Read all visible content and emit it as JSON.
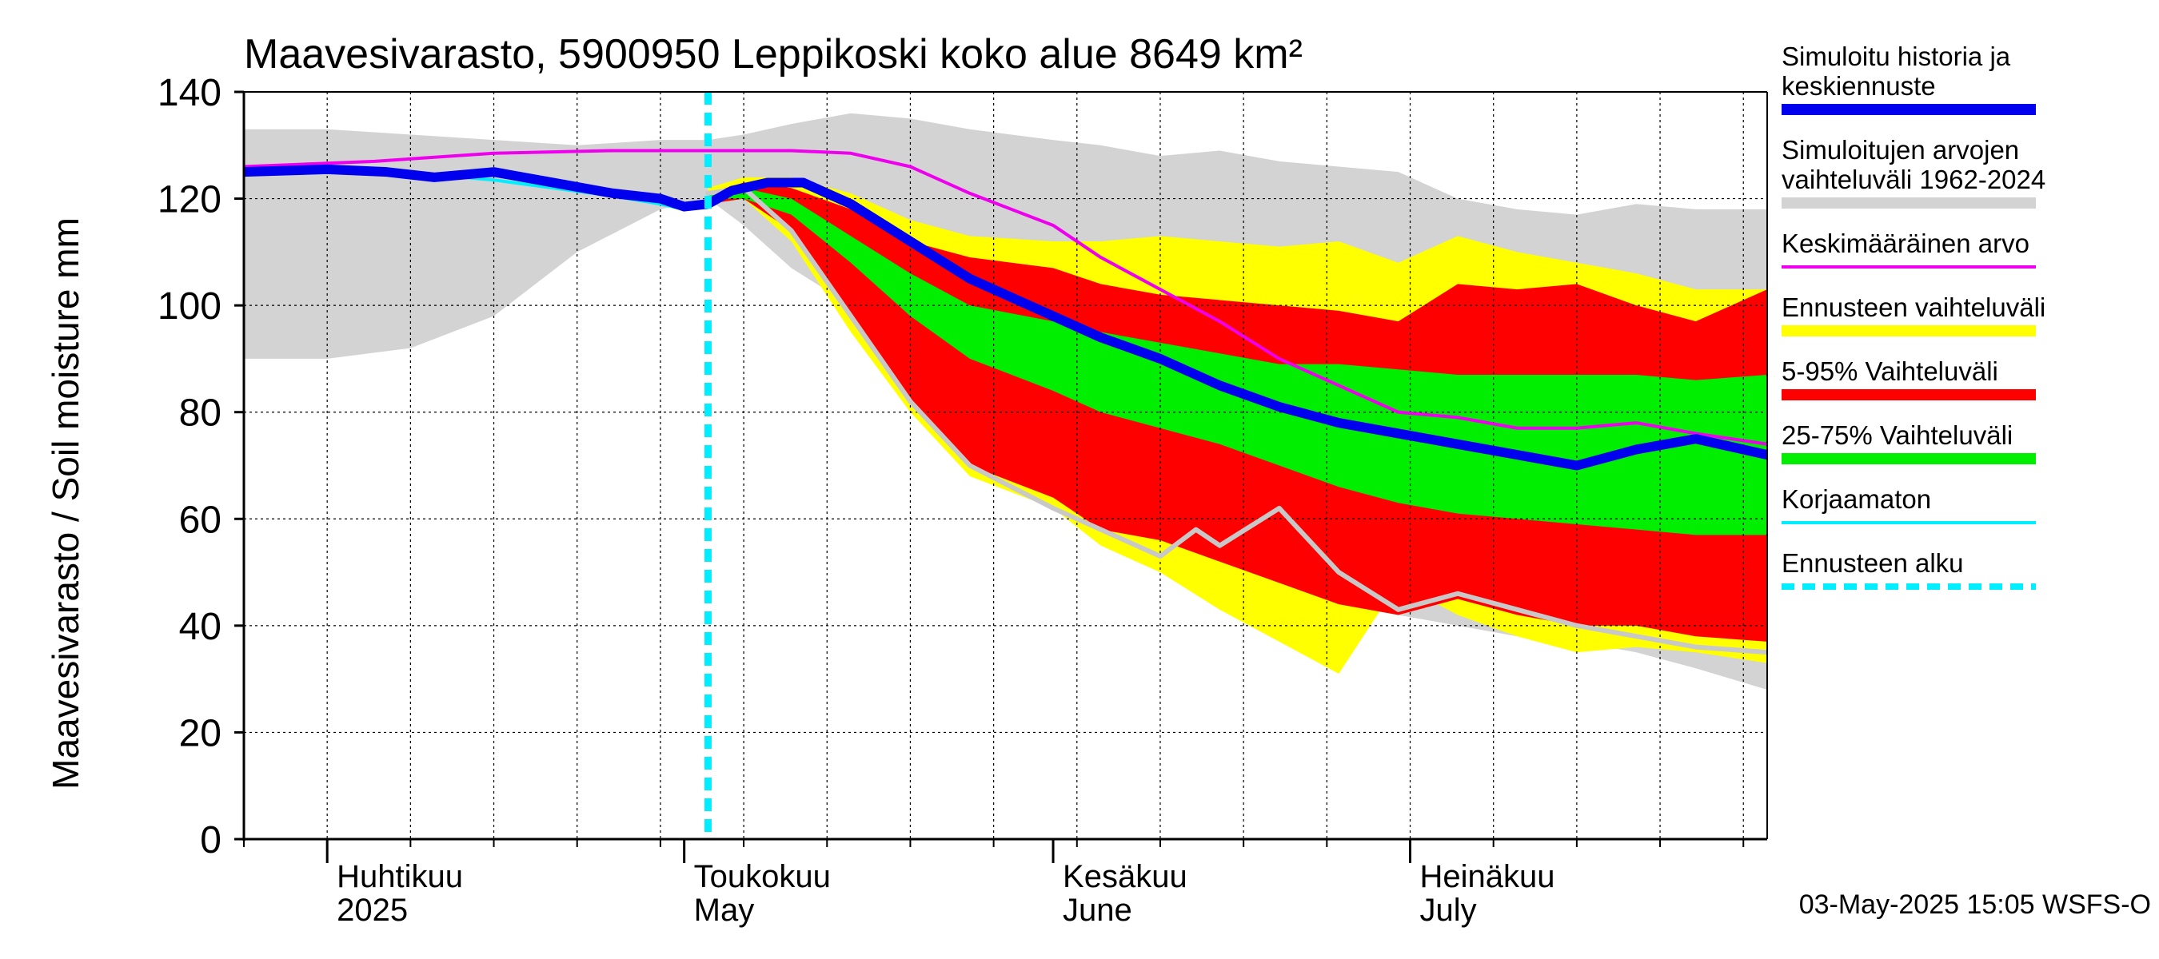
{
  "chart_data": {
    "type": "area",
    "title": "Maavesivarasto, 5900950 Leppikoski koko alue 8649 km²",
    "ylabel": "Maavesivarasto / Soil moisture   mm",
    "ylim": [
      0,
      140
    ],
    "yticks": [
      0,
      20,
      40,
      60,
      80,
      100,
      120,
      140
    ],
    "xlim": [
      "2025-03-25",
      "2025-07-31"
    ],
    "x_axis_type": "date",
    "grid": true,
    "legend_placement": "right",
    "forecast_start": "2025-05-03",
    "month_labels": [
      {
        "fi": "Huhtikuu",
        "en": "2025",
        "date": "2025-04-01"
      },
      {
        "fi": "Toukokuu",
        "en": "May",
        "date": "2025-05-01"
      },
      {
        "fi": "Kesäkuu",
        "en": "June",
        "date": "2025-06-01"
      },
      {
        "fi": "Heinäkuu",
        "en": "July",
        "date": "2025-07-01"
      }
    ],
    "colors": {
      "history_range": "#d3d3d3",
      "forecast_range": "#ffff00",
      "p5_95": "#ff0000",
      "p25_75": "#00ee00",
      "median": "#0000ee",
      "mean": "#ee00ee",
      "uncorrected": "#00eeff",
      "forecast_start": "#00eeff",
      "gray_line": "#c8c8c8"
    },
    "series": [
      {
        "name": "Simuloitujen arvojen vaihteluväli 1962-2024",
        "kind": "band",
        "color_key": "history_range",
        "x": [
          "2025-03-25",
          "2025-04-01",
          "2025-04-08",
          "2025-04-15",
          "2025-04-22",
          "2025-04-29",
          "2025-05-03",
          "2025-05-06",
          "2025-05-10",
          "2025-05-15",
          "2025-05-20",
          "2025-05-25",
          "2025-06-01",
          "2025-06-05",
          "2025-06-10",
          "2025-06-15",
          "2025-06-20",
          "2025-06-25",
          "2025-06-30",
          "2025-07-05",
          "2025-07-10",
          "2025-07-15",
          "2025-07-20",
          "2025-07-25",
          "2025-07-31"
        ],
        "upper": [
          133,
          133,
          132,
          131,
          130,
          131,
          131,
          132,
          134,
          136,
          135,
          133,
          131,
          130,
          128,
          129,
          127,
          126,
          125,
          120,
          118,
          117,
          119,
          118,
          118
        ],
        "lower": [
          90,
          90,
          92,
          98,
          110,
          118,
          120,
          115,
          107,
          100,
          97,
          90,
          80,
          70,
          62,
          56,
          50,
          45,
          42,
          40,
          38,
          37,
          35,
          32,
          28
        ]
      },
      {
        "name": "Ennusteen vaihteluväli",
        "kind": "band",
        "color_key": "forecast_range",
        "x": [
          "2025-05-03",
          "2025-05-06",
          "2025-05-10",
          "2025-05-15",
          "2025-05-20",
          "2025-05-25",
          "2025-06-01",
          "2025-06-05",
          "2025-06-10",
          "2025-06-15",
          "2025-06-20",
          "2025-06-25",
          "2025-06-30",
          "2025-07-05",
          "2025-07-10",
          "2025-07-15",
          "2025-07-20",
          "2025-07-25",
          "2025-07-31"
        ],
        "upper": [
          122,
          124,
          124,
          121,
          116,
          113,
          112,
          112,
          113,
          112,
          111,
          112,
          108,
          113,
          110,
          108,
          106,
          103,
          103
        ],
        "lower": [
          119,
          120,
          112,
          95,
          80,
          68,
          62,
          55,
          50,
          43,
          37,
          31,
          48,
          42,
          38,
          35,
          36,
          35,
          33
        ]
      },
      {
        "name": "5-95% Vaihteluväli",
        "kind": "band",
        "color_key": "p5_95",
        "x": [
          "2025-05-03",
          "2025-05-06",
          "2025-05-10",
          "2025-05-15",
          "2025-05-20",
          "2025-05-25",
          "2025-06-01",
          "2025-06-05",
          "2025-06-10",
          "2025-06-15",
          "2025-06-20",
          "2025-06-25",
          "2025-06-30",
          "2025-07-05",
          "2025-07-10",
          "2025-07-15",
          "2025-07-20",
          "2025-07-25",
          "2025-07-31"
        ],
        "upper": [
          121,
          123,
          122,
          118,
          112,
          109,
          107,
          104,
          102,
          101,
          100,
          99,
          97,
          104,
          103,
          104,
          100,
          97,
          103
        ],
        "lower": [
          119,
          120,
          114,
          98,
          82,
          70,
          64,
          58,
          56,
          52,
          48,
          44,
          42,
          45,
          42,
          40,
          40,
          38,
          37
        ]
      },
      {
        "name": "25-75% Vaihteluväli",
        "kind": "band",
        "color_key": "p25_75",
        "x": [
          "2025-05-03",
          "2025-05-06",
          "2025-05-10",
          "2025-05-15",
          "2025-05-20",
          "2025-05-25",
          "2025-06-01",
          "2025-06-05",
          "2025-06-10",
          "2025-06-15",
          "2025-06-20",
          "2025-06-25",
          "2025-06-30",
          "2025-07-05",
          "2025-07-10",
          "2025-07-15",
          "2025-07-20",
          "2025-07-25",
          "2025-07-31"
        ],
        "upper": [
          121,
          122,
          120,
          113,
          106,
          100,
          97,
          95,
          93,
          91,
          89,
          89,
          88,
          87,
          87,
          87,
          87,
          86,
          87
        ],
        "lower": [
          120,
          120,
          117,
          108,
          98,
          90,
          84,
          80,
          77,
          74,
          70,
          66,
          63,
          61,
          60,
          59,
          58,
          57,
          57
        ]
      },
      {
        "name": "Simuloitu historia ja keskiennuste",
        "kind": "line",
        "color_key": "median",
        "width": 12,
        "x": [
          "2025-03-25",
          "2025-04-01",
          "2025-04-06",
          "2025-04-10",
          "2025-04-15",
          "2025-04-20",
          "2025-04-25",
          "2025-04-29",
          "2025-05-01",
          "2025-05-03",
          "2025-05-05",
          "2025-05-08",
          "2025-05-11",
          "2025-05-15",
          "2025-05-20",
          "2025-05-25",
          "2025-06-01",
          "2025-06-05",
          "2025-06-10",
          "2025-06-15",
          "2025-06-20",
          "2025-06-25",
          "2025-06-30",
          "2025-07-05",
          "2025-07-10",
          "2025-07-15",
          "2025-07-20",
          "2025-07-25",
          "2025-07-31"
        ],
        "y": [
          125,
          125.5,
          125,
          124,
          125,
          123,
          121,
          120,
          118.5,
          119,
          121.5,
          123,
          123,
          119,
          112,
          105,
          98,
          94,
          90,
          85,
          81,
          78,
          76,
          74,
          72,
          70,
          73,
          75,
          72
        ]
      },
      {
        "name": "Keskimääräinen arvo",
        "kind": "line",
        "color_key": "mean",
        "width": 4,
        "x": [
          "2025-03-25",
          "2025-04-05",
          "2025-04-15",
          "2025-04-25",
          "2025-05-03",
          "2025-05-10",
          "2025-05-15",
          "2025-05-20",
          "2025-05-25",
          "2025-06-01",
          "2025-06-05",
          "2025-06-10",
          "2025-06-15",
          "2025-06-20",
          "2025-06-25",
          "2025-06-30",
          "2025-07-05",
          "2025-07-10",
          "2025-07-15",
          "2025-07-20",
          "2025-07-25",
          "2025-07-31"
        ],
        "y": [
          126,
          127,
          128.5,
          129,
          129,
          129,
          128.5,
          126,
          121,
          115,
          109,
          103,
          97,
          90,
          85,
          80,
          79,
          77,
          77,
          78,
          76,
          74
        ]
      },
      {
        "name": "Korjaamaton",
        "kind": "line",
        "color_key": "uncorrected",
        "width": 4,
        "x": [
          "2025-03-25",
          "2025-04-01",
          "2025-04-06",
          "2025-04-10",
          "2025-04-15",
          "2025-04-20",
          "2025-04-25",
          "2025-04-29",
          "2025-05-01",
          "2025-05-03"
        ],
        "y": [
          125.5,
          126,
          125.5,
          124.5,
          123.5,
          122,
          120.5,
          119,
          118,
          119.5
        ]
      },
      {
        "name": "",
        "kind": "line",
        "color_key": "gray_line",
        "width": 6,
        "x": [
          "2025-05-03",
          "2025-05-06",
          "2025-05-10",
          "2025-05-15",
          "2025-05-20",
          "2025-05-25",
          "2025-06-01",
          "2025-06-05",
          "2025-06-10",
          "2025-06-13",
          "2025-06-15",
          "2025-06-20",
          "2025-06-25",
          "2025-06-30",
          "2025-07-05",
          "2025-07-10",
          "2025-07-15",
          "2025-07-20",
          "2025-07-25",
          "2025-07-31"
        ],
        "y": [
          121,
          122,
          114,
          98,
          82,
          70,
          62,
          58,
          53,
          58,
          55,
          62,
          50,
          43,
          46,
          43,
          40,
          38,
          36,
          35
        ]
      }
    ],
    "legend": [
      {
        "label": "Simuloitu historia ja keskiennuste",
        "color_key": "median",
        "style": "thick"
      },
      {
        "label": "Simuloitujen arvojen vaihteluväli 1962-2024",
        "color_key": "history_range",
        "style": "thick"
      },
      {
        "label": "Keskimääräinen arvo",
        "color_key": "mean",
        "style": "thin"
      },
      {
        "label": "Ennusteen vaihteluväli",
        "color_key": "forecast_range",
        "style": "thick"
      },
      {
        "label": "5-95% Vaihteluväli",
        "color_key": "p5_95",
        "style": "thick"
      },
      {
        "label": "25-75% Vaihteluväli",
        "color_key": "p25_75",
        "style": "thick"
      },
      {
        "label": "Korjaamaton",
        "color_key": "uncorrected",
        "style": "thin"
      },
      {
        "label": "Ennusteen alku",
        "color_key": "forecast_start",
        "style": "dashed"
      }
    ],
    "footer": "03-May-2025 15:05 WSFS-O"
  }
}
